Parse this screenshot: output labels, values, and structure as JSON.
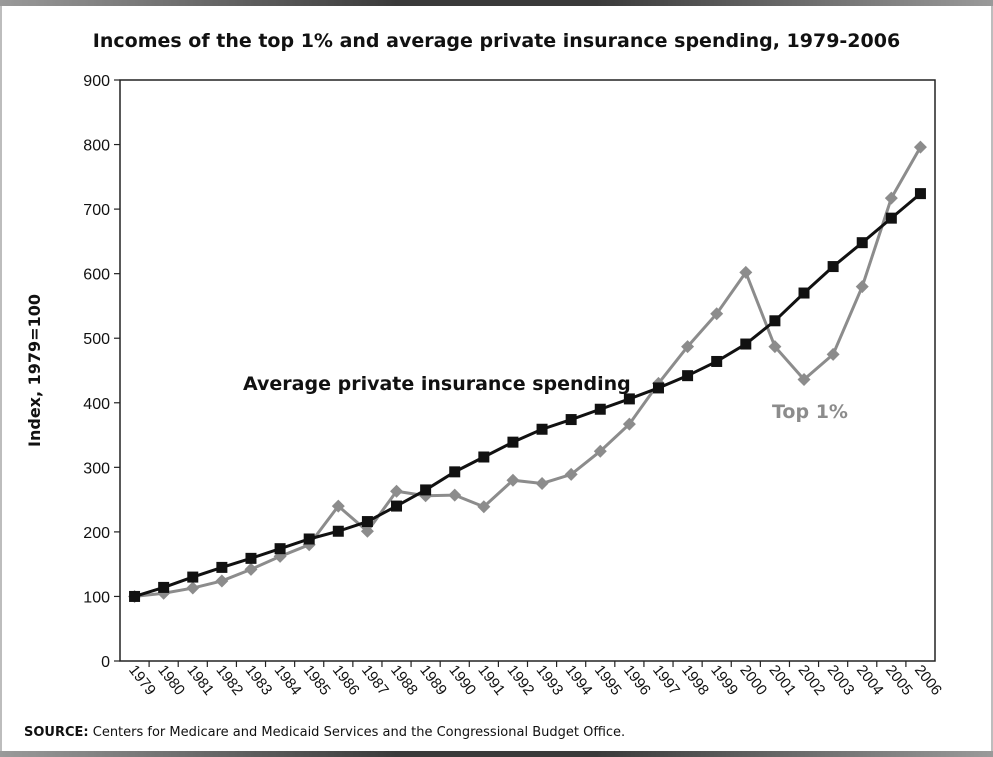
{
  "title": "Incomes of the top 1% and average private insurance spending, 1979-2006",
  "source_label": "SOURCE:",
  "source_text": " Centers for Medicare and Medicaid Services and the Congressional Budget Office.",
  "chart_data": {
    "type": "line",
    "title": "Incomes of the top 1% and average private insurance spending, 1979-2006",
    "xlabel": "",
    "ylabel": "Index, 1979=100",
    "ylim": [
      0,
      900
    ],
    "yticks": [
      0,
      100,
      200,
      300,
      400,
      500,
      600,
      700,
      800,
      900
    ],
    "grid": false,
    "categories": [
      "1979",
      "1980",
      "1981",
      "1982",
      "1983",
      "1984",
      "1985",
      "1986",
      "1987",
      "1988",
      "1989",
      "1990",
      "1991",
      "1992",
      "1993",
      "1994",
      "1995",
      "1996",
      "1997",
      "1998",
      "1999",
      "2000",
      "2001",
      "2002",
      "2003",
      "2004",
      "2005",
      "2006"
    ],
    "series": [
      {
        "name": "Average private insurance spending",
        "color": "#111111",
        "marker": "square",
        "values": [
          100,
          114,
          130,
          145,
          159,
          174,
          189,
          201,
          216,
          240,
          265,
          293,
          316,
          339,
          359,
          374,
          390,
          406,
          423,
          442,
          464,
          491,
          527,
          570,
          611,
          648,
          686,
          724
        ]
      },
      {
        "name": "Top 1%",
        "color": "#8c8c8c",
        "marker": "diamond",
        "values": [
          100,
          105,
          113,
          124,
          142,
          162,
          180,
          240,
          201,
          263,
          256,
          257,
          239,
          280,
          275,
          289,
          325,
          367,
          430,
          487,
          538,
          602,
          487,
          436,
          475,
          580,
          717,
          796
        ]
      }
    ]
  }
}
